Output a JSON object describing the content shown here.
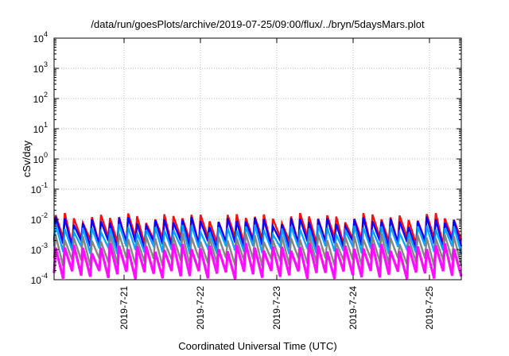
{
  "chart_data": {
    "type": "line",
    "title": "/data/run/goesPlots/archive/2019-07-25/09:00/flux/../bryn/5daysMars.plot",
    "xlabel": "Coordinated Universal Time (UTC)",
    "ylabel": "cSv/day",
    "yscale": "log",
    "ylim": [
      0.0001,
      10000
    ],
    "xlim": [
      "2019-07-20 02:00",
      "2019-07-25 10:00"
    ],
    "x_ticks": [
      "2019-7-21",
      "2019-7-22",
      "2019-7-23",
      "2019-7-24",
      "2019-7-25"
    ],
    "y_ticks": [
      {
        "base": "10",
        "exp": "4"
      },
      {
        "base": "10",
        "exp": "3"
      },
      {
        "base": "10",
        "exp": "2"
      },
      {
        "base": "10",
        "exp": "1"
      },
      {
        "base": "10",
        "exp": "0"
      },
      {
        "base": "10",
        "exp": "-1"
      },
      {
        "base": "10",
        "exp": "-2"
      },
      {
        "base": "10",
        "exp": "-3"
      },
      {
        "base": "10",
        "exp": "-4"
      }
    ],
    "grid": true,
    "series": [
      {
        "color": "#ff0000",
        "peak": 0.012,
        "trough": 0.002
      },
      {
        "color": "#0000ff",
        "peak": 0.009,
        "trough": 0.0015
      },
      {
        "color": "#00a0ff",
        "peak": 0.005,
        "trough": 0.001
      },
      {
        "color": "#808080",
        "peak": 0.0025,
        "trough": 0.0004
      },
      {
        "color": "#ff00ff",
        "peak": 0.0012,
        "trough": 0.00015
      }
    ],
    "cycles": 45
  }
}
